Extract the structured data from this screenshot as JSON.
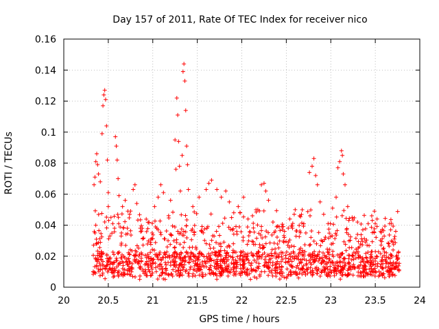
{
  "chart_data": {
    "type": "scatter",
    "title": "Day 157 of 2011, Rate Of TEC Index for receiver nico",
    "xlabel": "GPS time / hours",
    "ylabel": "ROTI / TECUs",
    "xlim": [
      20,
      24
    ],
    "ylim": [
      0,
      0.16
    ],
    "x_ticks": [
      20,
      20.5,
      21,
      21.5,
      22,
      22.5,
      23,
      23.5,
      24
    ],
    "x_tick_labels": [
      "20",
      "20.5",
      "21",
      "21.5",
      "22",
      "22.5",
      "23",
      "23.5",
      "24"
    ],
    "y_ticks": [
      0,
      0.02,
      0.04,
      0.06,
      0.08,
      0.1,
      0.12,
      0.14,
      0.16
    ],
    "y_tick_labels": [
      "0",
      "0.02",
      "0.04",
      "0.06",
      "0.08",
      "0.1",
      "0.12",
      "0.14",
      "0.16"
    ],
    "grid": true,
    "marker": "+",
    "marker_color": "#ff0000",
    "x_range_observed": [
      20.33,
      23.77
    ],
    "series": [
      {
        "name": "ROTI",
        "points": [
          [
            20.34,
            0.066
          ],
          [
            20.35,
            0.071
          ],
          [
            20.36,
            0.081
          ],
          [
            20.37,
            0.086
          ],
          [
            20.38,
            0.079
          ],
          [
            20.39,
            0.073
          ],
          [
            20.41,
            0.068
          ],
          [
            20.43,
            0.099
          ],
          [
            20.44,
            0.117
          ],
          [
            20.45,
            0.124
          ],
          [
            20.46,
            0.127
          ],
          [
            20.47,
            0.121
          ],
          [
            20.48,
            0.104
          ],
          [
            20.49,
            0.082
          ],
          [
            20.5,
            0.061
          ],
          [
            20.5,
            0.052
          ],
          [
            20.53,
            0.045
          ],
          [
            20.55,
            0.041
          ],
          [
            20.57,
            0.038
          ],
          [
            20.58,
            0.097
          ],
          [
            20.59,
            0.091
          ],
          [
            20.6,
            0.082
          ],
          [
            20.61,
            0.07
          ],
          [
            20.62,
            0.059
          ],
          [
            20.66,
            0.052
          ],
          [
            20.69,
            0.056
          ],
          [
            20.72,
            0.049
          ],
          [
            20.74,
            0.047
          ],
          [
            20.78,
            0.063
          ],
          [
            20.8,
            0.066
          ],
          [
            20.82,
            0.054
          ],
          [
            20.86,
            0.038
          ],
          [
            21.02,
            0.052
          ],
          [
            21.06,
            0.058
          ],
          [
            21.09,
            0.066
          ],
          [
            21.12,
            0.061
          ],
          [
            21.2,
            0.056
          ],
          [
            21.25,
            0.095
          ],
          [
            21.26,
            0.076
          ],
          [
            21.27,
            0.122
          ],
          [
            21.28,
            0.111
          ],
          [
            21.29,
            0.094
          ],
          [
            21.3,
            0.078
          ],
          [
            21.31,
            0.062
          ],
          [
            21.33,
            0.085
          ],
          [
            21.34,
            0.139
          ],
          [
            21.35,
            0.144
          ],
          [
            21.36,
            0.133
          ],
          [
            21.37,
            0.114
          ],
          [
            21.38,
            0.091
          ],
          [
            21.39,
            0.079
          ],
          [
            21.4,
            0.063
          ],
          [
            21.45,
            0.052
          ],
          [
            21.52,
            0.058
          ],
          [
            21.6,
            0.063
          ],
          [
            21.63,
            0.067
          ],
          [
            21.66,
            0.069
          ],
          [
            21.72,
            0.063
          ],
          [
            21.77,
            0.058
          ],
          [
            21.82,
            0.062
          ],
          [
            21.86,
            0.055
          ],
          [
            21.91,
            0.048
          ],
          [
            21.96,
            0.052
          ],
          [
            22.02,
            0.058
          ],
          [
            22.07,
            0.044
          ],
          [
            22.12,
            0.046
          ],
          [
            22.18,
            0.05
          ],
          [
            22.22,
            0.066
          ],
          [
            22.25,
            0.067
          ],
          [
            22.27,
            0.062
          ],
          [
            22.3,
            0.056
          ],
          [
            22.35,
            0.042
          ],
          [
            22.42,
            0.039
          ],
          [
            22.48,
            0.036
          ],
          [
            22.54,
            0.044
          ],
          [
            22.6,
            0.05
          ],
          [
            22.65,
            0.046
          ],
          [
            22.72,
            0.035
          ],
          [
            22.76,
            0.074
          ],
          [
            22.79,
            0.078
          ],
          [
            22.81,
            0.083
          ],
          [
            22.83,
            0.072
          ],
          [
            22.85,
            0.066
          ],
          [
            22.88,
            0.055
          ],
          [
            22.92,
            0.047
          ],
          [
            22.97,
            0.041
          ],
          [
            23.02,
            0.051
          ],
          [
            23.06,
            0.058
          ],
          [
            23.08,
            0.077
          ],
          [
            23.1,
            0.081
          ],
          [
            23.12,
            0.088
          ],
          [
            23.13,
            0.085
          ],
          [
            23.14,
            0.073
          ],
          [
            23.16,
            0.066
          ],
          [
            23.19,
            0.052
          ],
          [
            23.24,
            0.045
          ],
          [
            23.3,
            0.042
          ],
          [
            23.36,
            0.037
          ],
          [
            23.42,
            0.041
          ],
          [
            23.46,
            0.046
          ],
          [
            23.49,
            0.049
          ],
          [
            23.52,
            0.044
          ],
          [
            23.56,
            0.036
          ],
          [
            23.6,
            0.033
          ],
          [
            23.65,
            0.028
          ],
          [
            23.7,
            0.024
          ],
          [
            23.75,
            0.018
          ]
        ]
      }
    ],
    "dense_band": {
      "description": "dense cloud of low ROTI values",
      "y_range": [
        0.005,
        0.04
      ],
      "typical_y": 0.015
    }
  }
}
